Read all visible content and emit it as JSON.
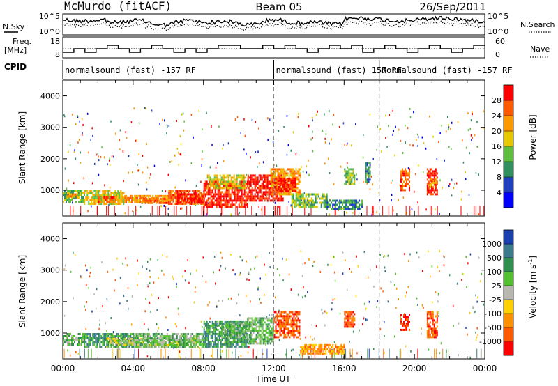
{
  "header": {
    "station": "McMurdo (fitACF)",
    "beam": "Beam 05",
    "date": "26/Sep/2011"
  },
  "top_panels": {
    "nsky_label": "N.Sky",
    "nsky_ticks": [
      "10^5",
      "10^0"
    ],
    "nsearch_label": "N.Search",
    "nsearch_ticks": [
      "10^5",
      "10^0"
    ],
    "freq_label_line1": "Freq.",
    "freq_label_line2": "[MHz]",
    "freq_ticks": [
      "18",
      "8"
    ],
    "nave_label": "Nave",
    "nave_ticks": [
      "60",
      "0"
    ],
    "cpid_label": "CPID",
    "cpid_segments": [
      {
        "text": "normalsound (fast) -157 RF",
        "start": 0,
        "end": 12
      },
      {
        "text": "normalsound (fast) 157 RF",
        "start": 12,
        "end": 18
      },
      {
        "text": "normalsound (fast) -157 RF",
        "start": 18,
        "end": 24
      }
    ]
  },
  "chart_data": [
    {
      "type": "heatmap",
      "name": "power",
      "ylabel": "Slant Range [km]",
      "xlabel": "Time UT",
      "xlim": [
        0,
        24
      ],
      "ylim": [
        180,
        4500
      ],
      "x_tick_labels": [
        "00:00",
        "04:00",
        "08:00",
        "12:00",
        "16:00",
        "20:00",
        "00:00"
      ],
      "x_ticks": [
        0,
        4,
        8,
        12,
        16,
        20,
        24
      ],
      "y_ticks": [
        1000,
        2000,
        3000,
        4000
      ],
      "colorbar": {
        "label": "Power [dB]",
        "ticks": [
          "4",
          "8",
          "12",
          "16",
          "20",
          "24",
          "28"
        ]
      },
      "colors": [
        "#0000ff",
        "#1f3fbf",
        "#2f8f5f",
        "#5fbf3f",
        "#e6c800",
        "#ff9900",
        "#ff5a00",
        "#ff0000"
      ],
      "regions": [
        {
          "t0": 0.0,
          "t1": 1.2,
          "r0": 650,
          "r1": 1000,
          "level": 3
        },
        {
          "t0": 0.2,
          "t1": 0.8,
          "r0": 800,
          "r1": 900,
          "level": 5
        },
        {
          "t0": 1.2,
          "t1": 3.5,
          "r0": 600,
          "r1": 1000,
          "level": 4
        },
        {
          "t0": 2.0,
          "t1": 3.0,
          "r0": 650,
          "r1": 800,
          "level": 6
        },
        {
          "t0": 3.5,
          "t1": 6.0,
          "r0": 600,
          "r1": 850,
          "level": 5
        },
        {
          "t0": 4.5,
          "t1": 6.0,
          "r0": 620,
          "r1": 760,
          "level": 6
        },
        {
          "t0": 6.0,
          "t1": 8.0,
          "r0": 550,
          "r1": 1000,
          "level": 6
        },
        {
          "t0": 6.5,
          "t1": 8.0,
          "r0": 600,
          "r1": 900,
          "level": 7
        },
        {
          "t0": 8.0,
          "t1": 10.5,
          "r0": 500,
          "r1": 1300,
          "level": 7
        },
        {
          "t0": 8.2,
          "t1": 10.4,
          "r0": 1100,
          "r1": 1500,
          "level": 4
        },
        {
          "t0": 10.5,
          "t1": 12.5,
          "r0": 700,
          "r1": 1500,
          "level": 7
        },
        {
          "t0": 11.8,
          "t1": 13.5,
          "r0": 900,
          "r1": 1700,
          "level": 5
        },
        {
          "t0": 12.0,
          "t1": 13.2,
          "r0": 1000,
          "r1": 1400,
          "level": 7
        },
        {
          "t0": 13.0,
          "t1": 15.0,
          "r0": 500,
          "r1": 900,
          "level": 3
        },
        {
          "t0": 15.0,
          "t1": 17.0,
          "r0": 380,
          "r1": 700,
          "level": 2
        },
        {
          "t0": 16.0,
          "t1": 16.6,
          "r0": 1200,
          "r1": 1700,
          "level": 3
        },
        {
          "t0": 17.2,
          "t1": 17.5,
          "r0": 1300,
          "r1": 1900,
          "level": 2
        },
        {
          "t0": 19.2,
          "t1": 19.7,
          "r0": 1000,
          "r1": 1700,
          "level": 6
        },
        {
          "t0": 20.7,
          "t1": 21.3,
          "r0": 900,
          "r1": 1700,
          "level": 7
        },
        {
          "t0": 20.8,
          "t1": 21.2,
          "r0": 1100,
          "r1": 1400,
          "level": 5
        }
      ]
    },
    {
      "type": "heatmap",
      "name": "velocity",
      "ylabel": "Slant Range [km]",
      "xlabel": "Time UT",
      "xlim": [
        0,
        24
      ],
      "ylim": [
        180,
        4500
      ],
      "x_tick_labels": [
        "00:00",
        "04:00",
        "08:00",
        "12:00",
        "16:00",
        "20:00",
        "00:00"
      ],
      "x_ticks": [
        0,
        4,
        8,
        12,
        16,
        20,
        24
      ],
      "y_ticks": [
        1000,
        2000,
        3000,
        4000
      ],
      "colorbar": {
        "label": "Velocity [m s^-1]",
        "ticks": [
          "1000",
          "500",
          "100",
          "25",
          "-25",
          "-100",
          "-500",
          "-1000"
        ]
      },
      "colors": [
        "#1a3fb0",
        "#3a7a8a",
        "#2f8f4f",
        "#55c030",
        "#b8b8b0",
        "#ffd000",
        "#ff9000",
        "#ff5a00",
        "#ff0000"
      ],
      "regions": [
        {
          "t0": 0.0,
          "t1": 1.2,
          "r0": 650,
          "r1": 1000,
          "level": 3
        },
        {
          "t0": 1.2,
          "t1": 4.0,
          "r0": 600,
          "r1": 1000,
          "level": 2
        },
        {
          "t0": 2.5,
          "t1": 7.5,
          "r0": 650,
          "r1": 850,
          "level": 4
        },
        {
          "t0": 4.0,
          "t1": 8.0,
          "r0": 550,
          "r1": 1000,
          "level": 3
        },
        {
          "t0": 8.0,
          "t1": 10.5,
          "r0": 550,
          "r1": 1400,
          "level": 2
        },
        {
          "t0": 9.0,
          "t1": 10.5,
          "r0": 900,
          "r1": 1300,
          "level": 3
        },
        {
          "t0": 10.5,
          "t1": 12.0,
          "r0": 700,
          "r1": 1500,
          "level": 3
        },
        {
          "t0": 12.0,
          "t1": 13.5,
          "r0": 900,
          "r1": 1700,
          "level": 7
        },
        {
          "t0": 13.5,
          "t1": 16.0,
          "r0": 380,
          "r1": 650,
          "level": 6
        },
        {
          "t0": 16.0,
          "t1": 16.6,
          "r0": 1200,
          "r1": 1700,
          "level": 7
        },
        {
          "t0": 19.2,
          "t1": 19.7,
          "r0": 1100,
          "r1": 1600,
          "level": 8
        },
        {
          "t0": 20.7,
          "t1": 21.3,
          "r0": 900,
          "r1": 1700,
          "level": 7
        }
      ]
    }
  ]
}
